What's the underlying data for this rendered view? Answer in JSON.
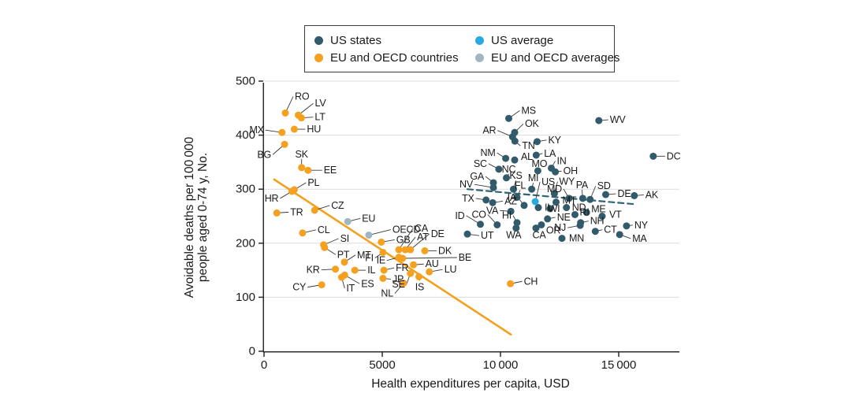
{
  "legend": {
    "items": [
      {
        "key": "us-states",
        "label": "US states",
        "color": "#315A6B"
      },
      {
        "key": "us-average",
        "label": "US average",
        "color": "#29A9E1"
      },
      {
        "key": "eu-oecd-countries",
        "label": "EU and OECD countries",
        "color": "#F5A01E"
      },
      {
        "key": "eu-oecd-averages",
        "label": "EU and OECD averages",
        "color": "#A2B6BF"
      }
    ]
  },
  "chart_data": {
    "type": "scatter",
    "xlabel": "Health expenditures per capita, USD",
    "ylabel": "Avoidable deaths per 100 000 people aged 0-74 y, No.",
    "ylabel_lines": [
      "Avoidable deaths per 100 000",
      "people aged 0-74 y, No."
    ],
    "xlim": [
      0,
      17500
    ],
    "ylim": [
      0,
      500
    ],
    "x_ticks": [
      0,
      5000,
      10000,
      15000
    ],
    "x_tick_labels": [
      "0",
      "5000",
      "10 000",
      "15 000"
    ],
    "y_ticks": [
      0,
      100,
      200,
      300,
      400,
      500
    ],
    "y_tick_labels": [
      "0",
      "100",
      "200",
      "300",
      "400",
      "500"
    ],
    "grid": "horizontal",
    "legend_position": "top-center",
    "point_format": [
      "label",
      "x_usd",
      "y_avoidable_deaths",
      "label_dx_px",
      "label_dy_px"
    ],
    "series": [
      {
        "key": "us",
        "name": "US states",
        "color": "#315A6B",
        "points": [
          [
            "MS",
            10350,
            431,
            16,
            -10
          ],
          [
            "WV",
            14160,
            427,
            14,
            -1
          ],
          [
            "OK",
            10600,
            405,
            13,
            -11
          ],
          [
            "AR",
            10510,
            397,
            -21,
            -8
          ],
          [
            "TN",
            10610,
            389,
            9,
            6
          ],
          [
            "KY",
            11550,
            388,
            14,
            -2
          ],
          [
            "LA",
            11510,
            363,
            10,
            -2
          ],
          [
            "NM",
            10220,
            357,
            -13,
            -7
          ],
          [
            "AL",
            10600,
            354,
            8,
            -4
          ],
          [
            "IN",
            12150,
            339,
            7,
            -9
          ],
          [
            "MO",
            11580,
            334,
            2,
            -9
          ],
          [
            "SC",
            9930,
            337,
            -15,
            -7
          ],
          [
            "NC",
            10250,
            321,
            3,
            -11
          ],
          [
            "OH",
            12320,
            332,
            10,
            -1
          ],
          [
            "GA",
            9700,
            312,
            -12,
            -8
          ],
          [
            "NV",
            9700,
            303,
            -26,
            -4
          ],
          [
            "KS",
            10550,
            300,
            3,
            -17
          ],
          [
            "MI",
            11320,
            300,
            2,
            -14
          ],
          [
            "WY",
            12280,
            292,
            6,
            -15
          ],
          [
            "FL",
            10700,
            285,
            4,
            -15
          ],
          [
            "MD",
            12900,
            283,
            -9,
            -12
          ],
          [
            "PA",
            13480,
            283,
            -1,
            -17
          ],
          [
            "SD",
            13790,
            281,
            9,
            -17
          ],
          [
            "DE",
            14450,
            290,
            15,
            -1
          ],
          [
            "AK",
            15660,
            288,
            14,
            -1
          ],
          [
            "TX",
            9390,
            280,
            -15,
            -2
          ],
          [
            "AZ",
            9670,
            275,
            15,
            -2
          ],
          [
            "IA",
            11000,
            270,
            -10,
            -10
          ],
          [
            "MT",
            12350,
            276,
            8,
            -2
          ],
          [
            "IL",
            11600,
            266,
            8,
            0
          ],
          [
            "WI",
            12100,
            264,
            5,
            0
          ],
          [
            "ND",
            12790,
            266,
            7,
            0
          ],
          [
            "RI",
            13150,
            253,
            6,
            -3
          ],
          [
            "ME",
            13640,
            257,
            6,
            -4
          ],
          [
            "VT",
            14300,
            250,
            9,
            -2
          ],
          [
            "ID",
            9150,
            235,
            -20,
            -11
          ],
          [
            "CO",
            9860,
            234,
            -14,
            -13
          ],
          [
            "VA",
            10440,
            259,
            -16,
            -1
          ],
          [
            "HI",
            10700,
            238,
            -7,
            -9
          ],
          [
            "NE",
            11990,
            245,
            12,
            -2
          ],
          [
            "OR",
            11730,
            234,
            6,
            7
          ],
          [
            "NJ",
            13370,
            233,
            -18,
            3
          ],
          [
            "NH",
            13390,
            238,
            12,
            -2
          ],
          [
            "CT",
            14010,
            222,
            11,
            -2
          ],
          [
            "NY",
            15330,
            232,
            10,
            -1
          ],
          [
            "MA",
            15040,
            216,
            16,
            5
          ],
          [
            "MN",
            12600,
            209,
            9,
            0
          ],
          [
            "WA",
            10660,
            228,
            -3,
            9
          ],
          [
            "CA",
            11500,
            228,
            4,
            9
          ],
          [
            "UT",
            8600,
            217,
            17,
            2
          ],
          [
            "DC",
            16460,
            361,
            17,
            0
          ]
        ]
      },
      {
        "key": "eu",
        "name": "EU and OECD countries",
        "color": "#F5A01E",
        "points": [
          [
            "RO",
            900,
            441,
            12,
            -21
          ],
          [
            "LV",
            1450,
            437,
            21,
            -15
          ],
          [
            "LT",
            1580,
            432,
            17,
            -1
          ],
          [
            "HU",
            1280,
            411,
            16,
            0
          ],
          [
            "MX",
            760,
            405,
            -23,
            -3
          ],
          [
            "BG",
            870,
            383,
            -17,
            13
          ],
          [
            "SK",
            1590,
            340,
            0,
            -17
          ],
          [
            "EE",
            1860,
            335,
            20,
            0
          ],
          [
            "PL",
            1280,
            299,
            17,
            -9
          ],
          [
            "HR",
            1180,
            296,
            -17,
            9
          ],
          [
            "TR",
            540,
            256,
            17,
            -1
          ],
          [
            "CZ",
            2140,
            261,
            21,
            -6
          ],
          [
            "CL",
            1630,
            219,
            19,
            -4
          ],
          [
            "SI",
            2520,
            197,
            21,
            -8
          ],
          [
            "PT",
            2560,
            192,
            16,
            9
          ],
          [
            "CY",
            2440,
            123,
            -20,
            3
          ],
          [
            "KR",
            3020,
            152,
            -20,
            1
          ],
          [
            "MT",
            3400,
            165,
            16,
            -9
          ],
          [
            "IT",
            3280,
            137,
            6,
            14
          ],
          [
            "ES",
            3410,
            141,
            21,
            11
          ],
          [
            "IL",
            3840,
            150,
            16,
            0
          ],
          [
            "GB",
            4960,
            202,
            19,
            -3
          ],
          [
            "FI",
            5030,
            183,
            -12,
            7
          ],
          [
            "IE",
            5700,
            174,
            -17,
            4
          ],
          [
            "FR",
            5070,
            150,
            15,
            -3
          ],
          [
            "JP",
            5030,
            135,
            12,
            1
          ],
          [
            "CA",
            5700,
            188,
            20,
            -27
          ],
          [
            "AT",
            5970,
            188,
            15,
            -16
          ],
          [
            "DE",
            6190,
            188,
            26,
            -20
          ],
          [
            "DK",
            6800,
            186,
            17,
            0
          ],
          [
            "BE",
            5860,
            172,
            71,
            -1
          ],
          [
            "AU",
            6320,
            160,
            15,
            -1
          ],
          [
            "NL",
            5900,
            126,
            -13,
            13
          ],
          [
            "SE",
            6190,
            144,
            -7,
            14
          ],
          [
            "IS",
            6550,
            138,
            1,
            13
          ],
          [
            "LU",
            6990,
            147,
            19,
            -3
          ],
          [
            "CH",
            10420,
            125,
            17,
            -3
          ]
        ]
      },
      {
        "key": "euavg",
        "name": "EU and OECD averages",
        "color": "#A2B6BF",
        "points": [
          [
            "EU",
            3540,
            240,
            18,
            -4
          ],
          [
            "OECD",
            4430,
            215,
            30,
            -7
          ]
        ]
      },
      {
        "key": "usavg",
        "name": "US average",
        "color": "#29A9E1",
        "points": [
          [
            "US",
            11470,
            277,
            8,
            -25
          ]
        ]
      }
    ],
    "trend_lines": [
      {
        "series": "EU and OECD countries",
        "style": "solid",
        "color": "#F5A01E",
        "x1": 430,
        "y1": 318,
        "x2": 10440,
        "y2": 31
      },
      {
        "series": "US states",
        "style": "dashed",
        "color": "#2F6472",
        "x1": 8600,
        "y1": 300,
        "x2": 15730,
        "y2": 272
      }
    ]
  }
}
